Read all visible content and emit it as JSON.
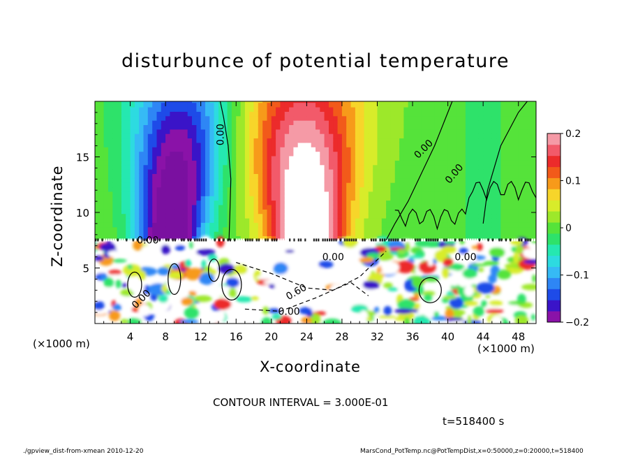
{
  "chart_data": {
    "type": "heatmap",
    "title": "disturbunce of potential temperature",
    "xlabel": "X-coordinate",
    "ylabel": "Z-coordinate",
    "x_unit_label": "(×1000 m)",
    "xlim": [
      0,
      50
    ],
    "ylim": [
      0,
      20
    ],
    "x_ticks": [
      "4",
      "8",
      "12",
      "16",
      "20",
      "24",
      "28",
      "32",
      "36",
      "40",
      "44",
      "48"
    ],
    "y_ticks": [
      "5",
      "10",
      "15"
    ],
    "colorbar": {
      "range": [
        -0.2,
        0.2
      ],
      "tick_labels": [
        "0.2",
        "0.1",
        "0",
        "−0.1",
        "−0.2"
      ],
      "colors": [
        "#8a12a8",
        "#3a14c8",
        "#1e4be8",
        "#2e86f5",
        "#36baf5",
        "#2ddbe0",
        "#25e8b0",
        "#2ee26a",
        "#55e33a",
        "#9de82a",
        "#d8ec2a",
        "#f7d52a",
        "#f79a1a",
        "#f25a1a",
        "#ec2b2b",
        "#f25a6a",
        "#f59aa6"
      ]
    },
    "upper_layer": {
      "z_range": [
        7.5,
        20
      ],
      "features": [
        {
          "kind": "cold anomaly",
          "x_center": 8.5,
          "value": -0.2
        },
        {
          "kind": "warm anomaly",
          "x_center": 24,
          "value": 0.2
        },
        {
          "kind": "near-zero background",
          "x_range": [
            32,
            50
          ],
          "value": 0.0
        }
      ]
    },
    "lower_layer": {
      "z_range": [
        0,
        7.5
      ],
      "note": "turbulent mixed layer"
    },
    "contour_labels": [
      "0.00",
      "0.00",
      "0.00",
      "0.00",
      "0.00",
      "0.00",
      "0.00",
      "0.60",
      "0.00"
    ],
    "contour_interval_text": "CONTOUR INTERVAL = 3.000E-01",
    "time_text": "t=518400 s"
  },
  "footer": {
    "left": "./gpview_dist-from-xmean  2010-12-20",
    "right": "MarsCond_PotTemp.nc@PotTempDist,x=0:50000,z=0:20000,t=518400"
  }
}
